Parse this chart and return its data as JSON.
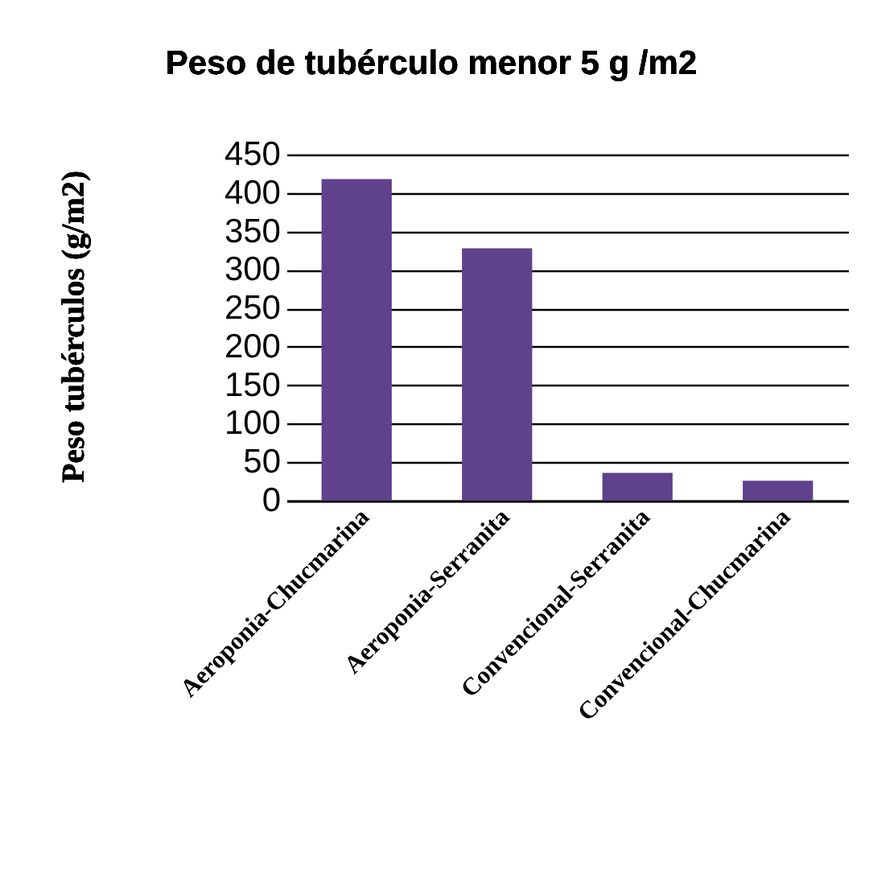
{
  "chart_data": {
    "type": "bar",
    "title": "Peso de tubérculo menor 5 g /m2",
    "ylabel": "Peso tubérculos (g/m2)",
    "categories": [
      "Aeroponia-Chucmarina",
      "Aeroponia-Serranita",
      "Convencional-Serranita",
      "Convencional-Chucmarina"
    ],
    "values": [
      418,
      328,
      36,
      26
    ],
    "color": "#60418c",
    "ylim": [
      0,
      450
    ],
    "yticks": [
      0,
      50,
      100,
      150,
      200,
      250,
      300,
      350,
      400,
      450
    ],
    "grid": "y"
  }
}
